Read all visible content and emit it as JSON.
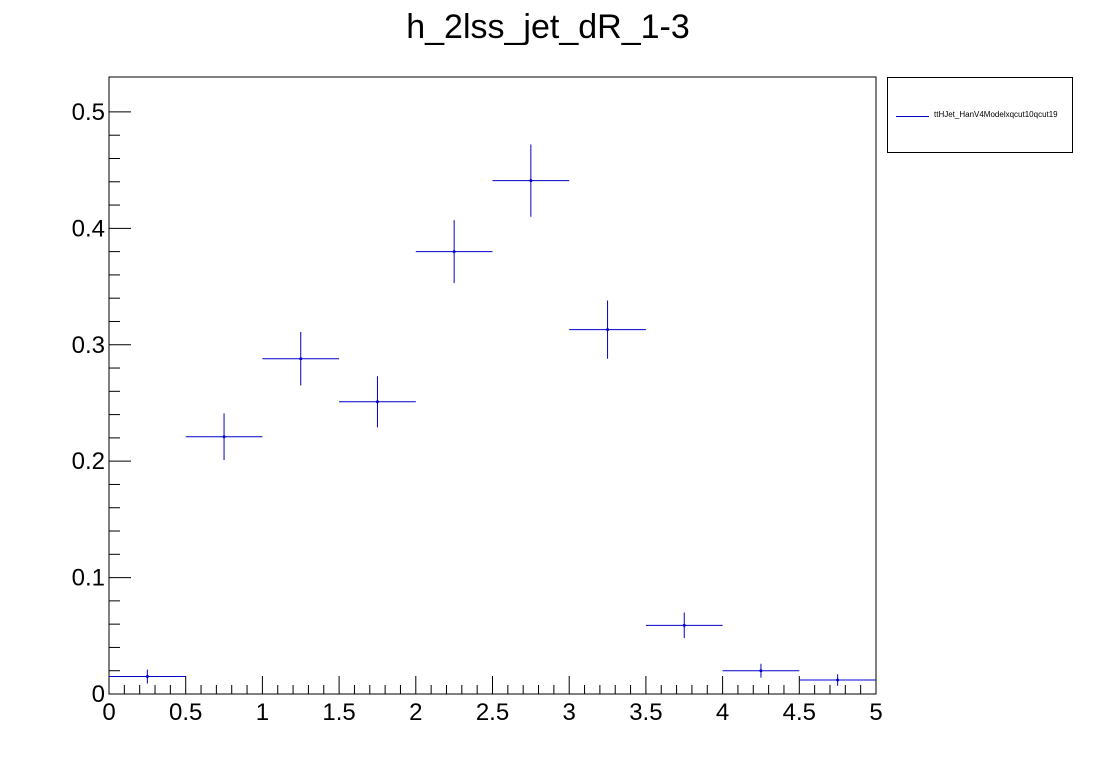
{
  "chart_data": {
    "type": "scatter",
    "title": "h_2lss_jet_dR_1-3",
    "xlabel": "",
    "ylabel": "",
    "xlim": [
      0,
      5
    ],
    "ylim": [
      0,
      0.53
    ],
    "x_ticks": [
      "0",
      "0.5",
      "1",
      "1.5",
      "2",
      "2.5",
      "3",
      "3.5",
      "4",
      "4.5",
      "5"
    ],
    "y_ticks": [
      "0",
      "0.1",
      "0.2",
      "0.3",
      "0.4",
      "0.5"
    ],
    "grid": false,
    "legend_position": "top-right, outside plot",
    "series": [
      {
        "name": "ttHJet_HanV4Modelxqcut10qcut19",
        "color": "#0000cc",
        "bin_width": 0.5,
        "x": [
          0.25,
          0.75,
          1.25,
          1.75,
          2.25,
          2.75,
          3.25,
          3.75,
          4.25,
          4.75
        ],
        "y": [
          0.015,
          0.221,
          0.288,
          0.251,
          0.38,
          0.441,
          0.313,
          0.059,
          0.02,
          0.012
        ],
        "y_err": [
          0.006,
          0.02,
          0.023,
          0.022,
          0.027,
          0.031,
          0.025,
          0.011,
          0.006,
          0.005
        ]
      }
    ]
  }
}
